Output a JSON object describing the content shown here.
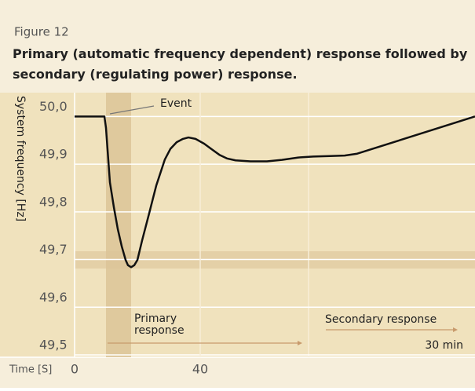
{
  "figure_label": "Figure 12",
  "chart_data": {
    "type": "line",
    "title": "Primary (automatic frequency dependent) response followed by secondary (regulating power) response.",
    "y_label": "System frequency [Hz]",
    "x_label": "Time [S]",
    "x": [
      0,
      9.5,
      10,
      10.5,
      11.25,
      12.5,
      13.75,
      15,
      16.25,
      17,
      18,
      19,
      20,
      21.5,
      23.75,
      26,
      28.75,
      30.5,
      32.5,
      34.5,
      36.25,
      38.5,
      41.25,
      43.5,
      46.25,
      48.5,
      51.25,
      56,
      61.25,
      66,
      71.25,
      76,
      81.25,
      86,
      90,
      127.5
    ],
    "series": [
      {
        "name": "System frequency",
        "color": "#111111",
        "values": [
          50.0,
          50.0,
          49.976,
          49.93,
          49.862,
          49.81,
          49.764,
          49.728,
          49.699,
          49.688,
          49.684,
          49.688,
          49.699,
          49.74,
          49.797,
          49.855,
          49.91,
          49.932,
          49.946,
          49.953,
          49.956,
          49.953,
          49.943,
          49.932,
          49.919,
          49.912,
          49.908,
          49.906,
          49.906,
          49.909,
          49.914,
          49.916,
          49.917,
          49.918,
          49.922,
          50.0
        ]
      }
    ],
    "xlim": [
      0,
      127.5
    ],
    "xticks": [
      0,
      40
    ],
    "ylim": [
      49.5,
      50.05
    ],
    "yticks": [
      {
        "value": 50.0,
        "label": "50,0"
      },
      {
        "value": 49.9,
        "label": "49,9"
      },
      {
        "value": 49.8,
        "label": "49,8"
      },
      {
        "value": 49.7,
        "label": "49,7"
      },
      {
        "value": 49.6,
        "label": "49,6"
      },
      {
        "value": 49.5,
        "label": "49,5"
      }
    ],
    "grid": true,
    "annotations": {
      "event": "Event",
      "primary": [
        "Primary",
        "response"
      ],
      "secondary": "Secondary response",
      "duration": "30 min"
    }
  }
}
